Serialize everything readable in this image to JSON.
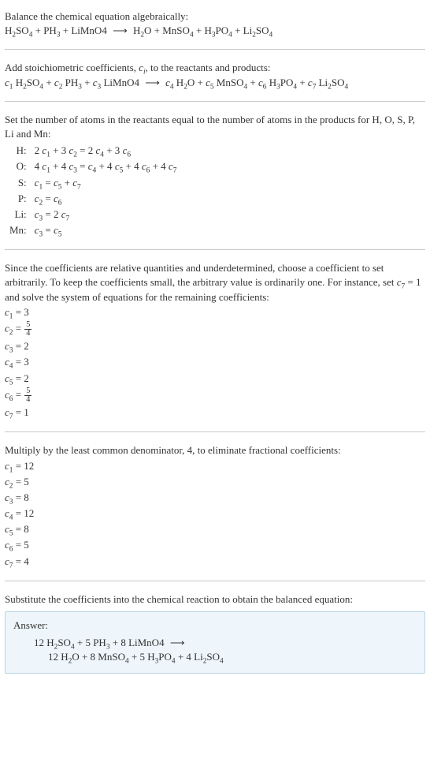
{
  "intro1": "Balance the chemical equation algebraically:",
  "eq_unbalanced_html": "H<sub>2</sub>SO<sub>4</sub> + PH<sub>3</sub> + LiMnO4 <span class='arrow'>⟶</span> H<sub>2</sub>O + MnSO<sub>4</sub> + H<sub>3</sub>PO<sub>4</sub> + Li<sub>2</sub>SO<sub>4</sub>",
  "intro2_html": "Add stoichiometric coefficients, <span class='ital'>c<sub>i</sub></span>, to the reactants and products:",
  "eq_coeffs_html": "<span class='ital'>c</span><sub>1</sub> H<sub>2</sub>SO<sub>4</sub> + <span class='ital'>c</span><sub>2</sub> PH<sub>3</sub> + <span class='ital'>c</span><sub>3</sub> LiMnO4 <span class='arrow'>⟶</span> <span class='ital'>c</span><sub>4</sub> H<sub>2</sub>O + <span class='ital'>c</span><sub>5</sub> MnSO<sub>4</sub> + <span class='ital'>c</span><sub>6</sub> H<sub>3</sub>PO<sub>4</sub> + <span class='ital'>c</span><sub>7</sub> Li<sub>2</sub>SO<sub>4</sub>",
  "intro3": "Set the number of atoms in the reactants equal to the number of atoms in the products for H, O, S, P, Li and Mn:",
  "atom_rows": [
    {
      "label": "H:",
      "eq_html": "2 <span class='ital'>c</span><sub>1</sub> + 3 <span class='ital'>c</span><sub>2</sub> = 2 <span class='ital'>c</span><sub>4</sub> + 3 <span class='ital'>c</span><sub>6</sub>"
    },
    {
      "label": "O:",
      "eq_html": "4 <span class='ital'>c</span><sub>1</sub> + 4 <span class='ital'>c</span><sub>3</sub> = <span class='ital'>c</span><sub>4</sub> + 4 <span class='ital'>c</span><sub>5</sub> + 4 <span class='ital'>c</span><sub>6</sub> + 4 <span class='ital'>c</span><sub>7</sub>"
    },
    {
      "label": "S:",
      "eq_html": "<span class='ital'>c</span><sub>1</sub> = <span class='ital'>c</span><sub>5</sub> + <span class='ital'>c</span><sub>7</sub>"
    },
    {
      "label": "P:",
      "eq_html": "<span class='ital'>c</span><sub>2</sub> = <span class='ital'>c</span><sub>6</sub>"
    },
    {
      "label": "Li:",
      "eq_html": "<span class='ital'>c</span><sub>3</sub> = 2 <span class='ital'>c</span><sub>7</sub>"
    },
    {
      "label": "Mn:",
      "eq_html": "<span class='ital'>c</span><sub>3</sub> = <span class='ital'>c</span><sub>5</sub>"
    }
  ],
  "intro4_html": "Since the coefficients are relative quantities and underdetermined, choose a coefficient to set arbitrarily. To keep the coefficients small, the arbitrary value is ordinarily one. For instance, set <span class='ital'>c</span><sub>7</sub> = 1 and solve the system of equations for the remaining coefficients:",
  "coefs_frac": [
    {
      "html": "<span class='ital'>c</span><sub>1</sub> = 3"
    },
    {
      "html": "<span class='ital'>c</span><sub>2</sub> = <span class='frac'><span class='num'>5</span><span class='den'>4</span></span>"
    },
    {
      "html": "<span class='ital'>c</span><sub>3</sub> = 2"
    },
    {
      "html": "<span class='ital'>c</span><sub>4</sub> = 3"
    },
    {
      "html": "<span class='ital'>c</span><sub>5</sub> = 2"
    },
    {
      "html": "<span class='ital'>c</span><sub>6</sub> = <span class='frac'><span class='num'>5</span><span class='den'>4</span></span>"
    },
    {
      "html": "<span class='ital'>c</span><sub>7</sub> = 1"
    }
  ],
  "intro5": "Multiply by the least common denominator, 4, to eliminate fractional coefficients:",
  "coefs_int": [
    {
      "html": "<span class='ital'>c</span><sub>1</sub> = 12"
    },
    {
      "html": "<span class='ital'>c</span><sub>2</sub> = 5"
    },
    {
      "html": "<span class='ital'>c</span><sub>3</sub> = 8"
    },
    {
      "html": "<span class='ital'>c</span><sub>4</sub> = 12"
    },
    {
      "html": "<span class='ital'>c</span><sub>5</sub> = 8"
    },
    {
      "html": "<span class='ital'>c</span><sub>6</sub> = 5"
    },
    {
      "html": "<span class='ital'>c</span><sub>7</sub> = 4"
    }
  ],
  "intro6": "Substitute the coefficients into the chemical reaction to obtain the balanced equation:",
  "answer_label": "Answer:",
  "answer_line1_html": "12 H<sub>2</sub>SO<sub>4</sub> + 5 PH<sub>3</sub> + 8 LiMnO4 <span class='arrow'>⟶</span>",
  "answer_line2_html": "12 H<sub>2</sub>O + 8 MnSO<sub>4</sub> + 5 H<sub>3</sub>PO<sub>4</sub> + 4 Li<sub>2</sub>SO<sub>4</sub>"
}
